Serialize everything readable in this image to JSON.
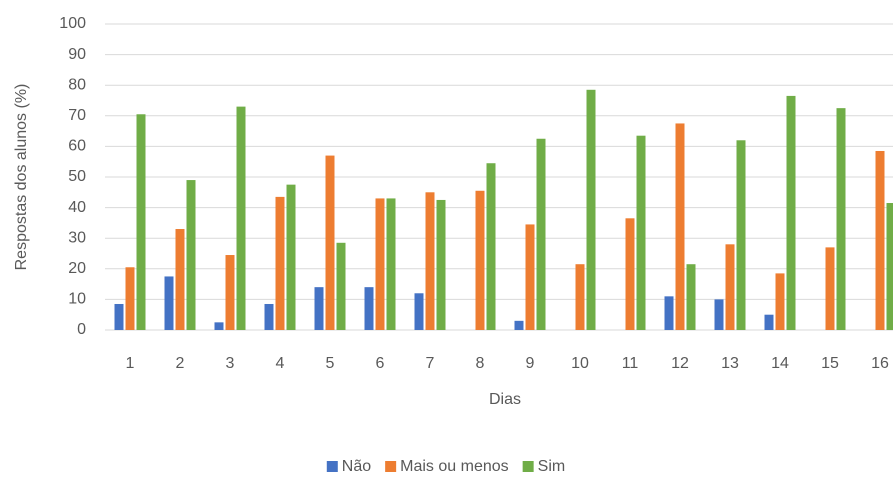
{
  "chart_data": {
    "type": "bar",
    "x_label": "Dias",
    "y_label": "Respostas dos alunos (%)",
    "categories": [
      "1",
      "2",
      "3",
      "4",
      "5",
      "6",
      "7",
      "8",
      "9",
      "10",
      "11",
      "12",
      "13",
      "14",
      "15",
      "16"
    ],
    "series": [
      {
        "name": "Não",
        "color": "#4472c4",
        "values": [
          8.5,
          17.5,
          2.5,
          8.5,
          14,
          14,
          12,
          0,
          3,
          0,
          0,
          11,
          10,
          5,
          0,
          0
        ]
      },
      {
        "name": "Mais ou menos",
        "color": "#ed7d31",
        "values": [
          20.5,
          33,
          24.5,
          43.5,
          57,
          43,
          45,
          45.5,
          34.5,
          21.5,
          36.5,
          67.5,
          28,
          18.5,
          27,
          58.5
        ]
      },
      {
        "name": "Sim",
        "color": "#70ad47",
        "values": [
          70.5,
          49,
          73,
          47.5,
          28.5,
          43,
          42.5,
          54.5,
          62.5,
          78.5,
          63.5,
          21.5,
          62,
          76.5,
          72.5,
          41.5
        ]
      }
    ],
    "ylim": [
      0,
      100
    ],
    "yticks": [
      0,
      10,
      20,
      30,
      40,
      50,
      60,
      70,
      80,
      90,
      100
    ],
    "grid": true,
    "legend": "bottom"
  }
}
